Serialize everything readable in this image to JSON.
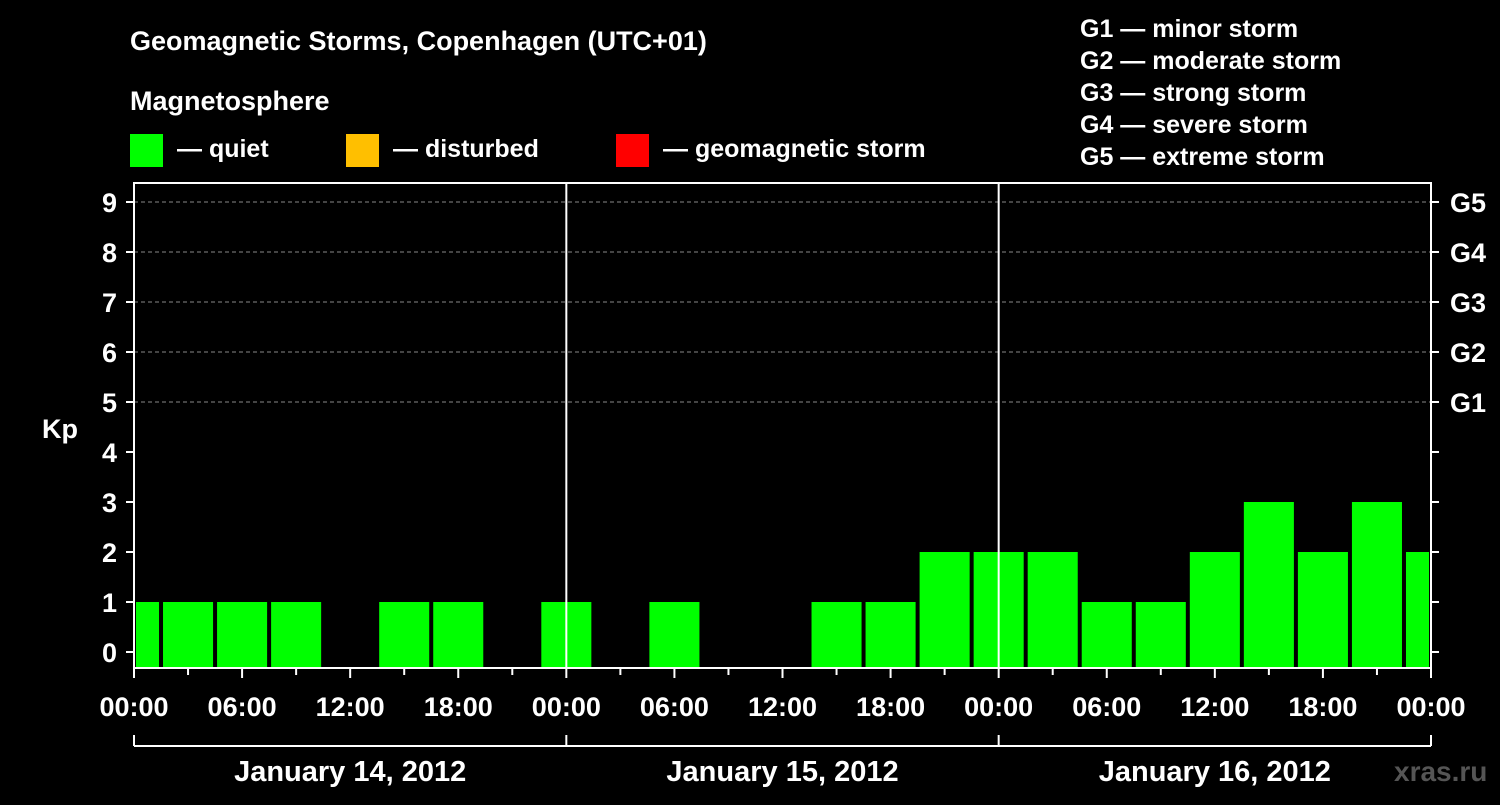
{
  "chart_data": {
    "type": "bar",
    "title": "Geomagnetic Storms, Copenhagen (UTC+01)",
    "subtitle": "Magnetosphere",
    "ylabel": "Kp",
    "ylim": [
      0,
      9
    ],
    "yticks": [
      "0",
      "1",
      "2",
      "3",
      "4",
      "5",
      "6",
      "7",
      "8",
      "9"
    ],
    "start": "2012-01-14 00:00",
    "end": "2012-01-17 00:00",
    "interval_hours": 3,
    "xtick_labels": [
      "00:00",
      "06:00",
      "12:00",
      "18:00",
      "00:00",
      "06:00",
      "12:00",
      "18:00",
      "00:00",
      "06:00",
      "12:00",
      "18:00",
      "00:00"
    ],
    "date_labels": [
      "January 14, 2012",
      "January 15, 2012",
      "January 16, 2012"
    ],
    "values": [
      1,
      1,
      1,
      1,
      0,
      1,
      1,
      0,
      1,
      0,
      1,
      0,
      0,
      1,
      1,
      2,
      2,
      2,
      1,
      1,
      2,
      3,
      2,
      3,
      2
    ],
    "status_legend": [
      {
        "label": "— quiet",
        "color": "#00ff00"
      },
      {
        "label": "— disturbed",
        "color": "#ffbf00"
      },
      {
        "label": "— geomagnetic storm",
        "color": "#ff0000"
      }
    ],
    "storm_scale": [
      {
        "level": "G1",
        "kp": 5,
        "label": "G1 — minor storm"
      },
      {
        "level": "G2",
        "kp": 6,
        "label": "G2 — moderate storm"
      },
      {
        "level": "G3",
        "kp": 7,
        "label": "G3 — strong storm"
      },
      {
        "level": "G4",
        "kp": 8,
        "label": "G4 — severe storm"
      },
      {
        "level": "G5",
        "kp": 9,
        "label": "G5 — extreme storm"
      }
    ],
    "bar_color": "#00ff00",
    "watermark": "xras.ru"
  }
}
